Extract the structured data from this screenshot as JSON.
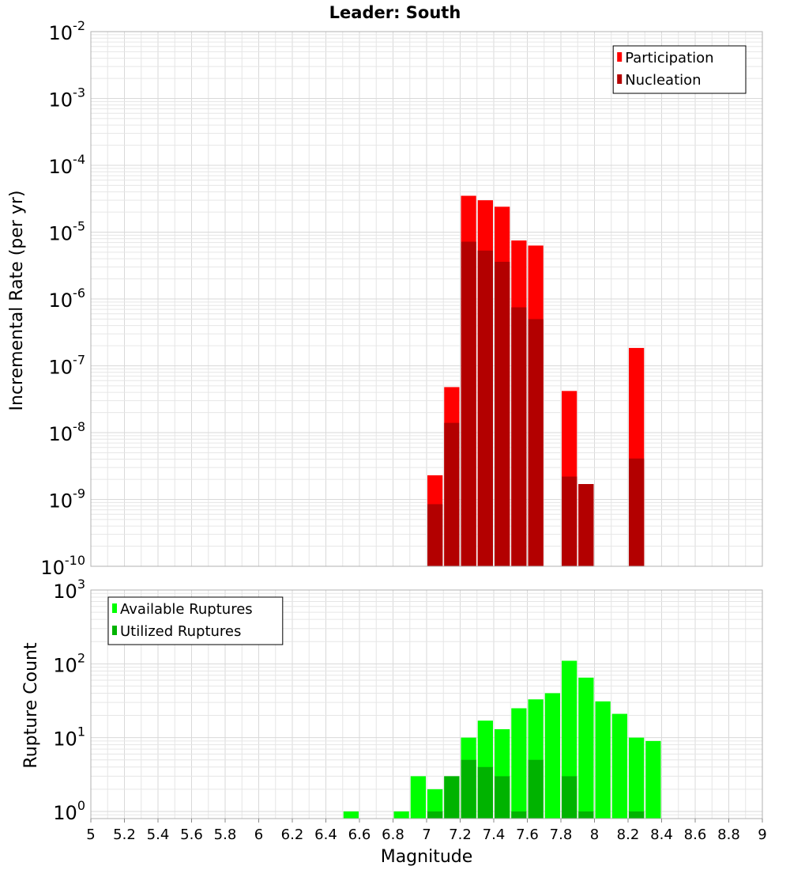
{
  "chart_data": {
    "type": "bar",
    "title": "Leader: South",
    "xlabel": "Magnitude",
    "xlim": [
      5,
      9
    ],
    "x_ticks": [
      "5",
      "5.2",
      "5.4",
      "5.6",
      "5.8",
      "6",
      "6.2",
      "6.4",
      "6.6",
      "6.8",
      "7",
      "7.2",
      "7.4",
      "7.6",
      "7.8",
      "8",
      "8.2",
      "8.4",
      "8.6",
      "8.8",
      "9"
    ],
    "bin_width": 0.1,
    "panels": [
      {
        "id": "rate",
        "ylabel": "Incremental Rate (per yr)",
        "yscale": "log",
        "ylim": [
          1e-10,
          0.01
        ],
        "y_tick_exponents": [
          -10,
          -9,
          -8,
          -7,
          -6,
          -5,
          -4,
          -3,
          -2
        ],
        "legend": {
          "position": "top-right",
          "entries": [
            "Participation",
            "Nucleation"
          ]
        },
        "series": [
          {
            "name": "Participation",
            "color": "#ff0000",
            "points": [
              {
                "x": 7.05,
                "y": 2.3e-09
              },
              {
                "x": 7.15,
                "y": 4.8e-08
              },
              {
                "x": 7.25,
                "y": 3.5e-05
              },
              {
                "x": 7.35,
                "y": 3e-05
              },
              {
                "x": 7.45,
                "y": 2.4e-05
              },
              {
                "x": 7.55,
                "y": 7.5e-06
              },
              {
                "x": 7.65,
                "y": 6.3e-06
              },
              {
                "x": 7.85,
                "y": 4.2e-08
              },
              {
                "x": 7.95,
                "y": 1.7e-09
              },
              {
                "x": 8.25,
                "y": 1.85e-07
              }
            ]
          },
          {
            "name": "Nucleation",
            "color": "#b30000",
            "points": [
              {
                "x": 7.05,
                "y": 8.5e-10
              },
              {
                "x": 7.15,
                "y": 1.4e-08
              },
              {
                "x": 7.25,
                "y": 7.2e-06
              },
              {
                "x": 7.35,
                "y": 5.3e-06
              },
              {
                "x": 7.45,
                "y": 3.6e-06
              },
              {
                "x": 7.55,
                "y": 7.5e-07
              },
              {
                "x": 7.65,
                "y": 5e-07
              },
              {
                "x": 7.85,
                "y": 2.2e-09
              },
              {
                "x": 7.95,
                "y": 1.7e-09
              },
              {
                "x": 8.25,
                "y": 4.1e-09
              }
            ]
          }
        ]
      },
      {
        "id": "count",
        "ylabel": "Rupture Count",
        "yscale": "log",
        "ylim": [
          0.8,
          1000
        ],
        "y_tick_exponents": [
          0,
          1,
          2,
          3
        ],
        "legend": {
          "position": "top-left",
          "entries": [
            "Available Ruptures",
            "Utilized Ruptures"
          ]
        },
        "series": [
          {
            "name": "Available Ruptures",
            "color": "#00ff00",
            "points": [
              {
                "x": 6.55,
                "y": 1
              },
              {
                "x": 6.85,
                "y": 1
              },
              {
                "x": 6.95,
                "y": 3
              },
              {
                "x": 7.05,
                "y": 2
              },
              {
                "x": 7.15,
                "y": 3
              },
              {
                "x": 7.25,
                "y": 10
              },
              {
                "x": 7.35,
                "y": 17
              },
              {
                "x": 7.45,
                "y": 13
              },
              {
                "x": 7.55,
                "y": 25
              },
              {
                "x": 7.65,
                "y": 33
              },
              {
                "x": 7.75,
                "y": 40
              },
              {
                "x": 7.85,
                "y": 110
              },
              {
                "x": 7.95,
                "y": 65
              },
              {
                "x": 8.05,
                "y": 31
              },
              {
                "x": 8.15,
                "y": 21
              },
              {
                "x": 8.25,
                "y": 10
              },
              {
                "x": 8.35,
                "y": 9
              }
            ]
          },
          {
            "name": "Utilized Ruptures",
            "color": "#00b300",
            "points": [
              {
                "x": 7.05,
                "y": 1
              },
              {
                "x": 7.15,
                "y": 3
              },
              {
                "x": 7.25,
                "y": 5
              },
              {
                "x": 7.35,
                "y": 4
              },
              {
                "x": 7.45,
                "y": 3
              },
              {
                "x": 7.55,
                "y": 1
              },
              {
                "x": 7.65,
                "y": 5
              },
              {
                "x": 7.85,
                "y": 3
              },
              {
                "x": 7.95,
                "y": 1
              },
              {
                "x": 8.25,
                "y": 1
              }
            ]
          }
        ]
      }
    ]
  }
}
